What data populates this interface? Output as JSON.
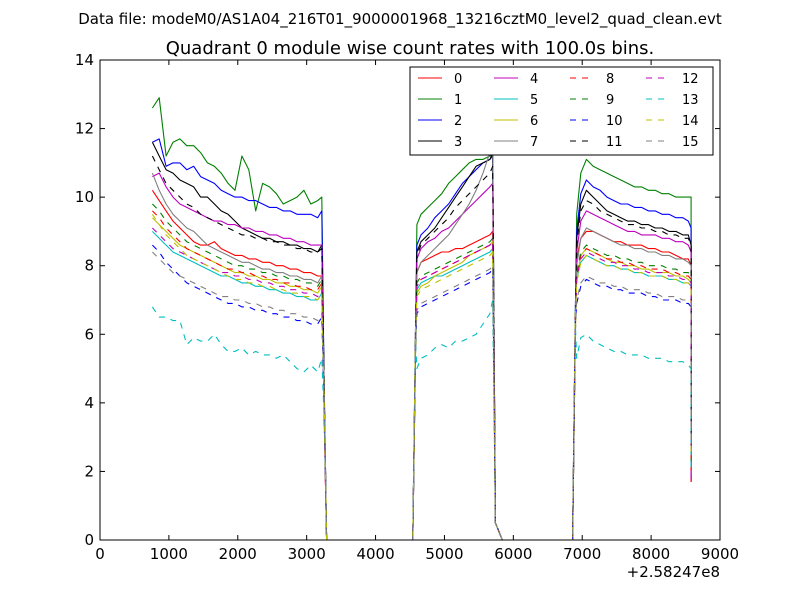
{
  "figure": {
    "suptitle": "Data file: modeM0/AS1A04_216T01_9000001968_13216cztM0_level2_quad_clean.evt"
  },
  "chart_data": {
    "type": "line",
    "title": "Quadrant 0 module wise count rates with 100.0s bins.",
    "xlabel": "",
    "ylabel": "",
    "x_offset_label": "+2.58247e8",
    "xlim": [
      0,
      9000
    ],
    "ylim": [
      0,
      14
    ],
    "xticks": [
      0,
      1000,
      2000,
      3000,
      4000,
      5000,
      6000,
      7000,
      8000,
      9000
    ],
    "xtick_labels": [
      "0",
      "1000",
      "2000",
      "3000",
      "4000",
      "5000",
      "6000",
      "7000",
      "8000",
      "9000"
    ],
    "yticks": [
      0,
      2,
      4,
      6,
      8,
      10,
      12,
      14
    ],
    "ytick_labels": [
      "0",
      "2",
      "4",
      "6",
      "8",
      "10",
      "12",
      "14"
    ],
    "grid": false,
    "legend": {
      "placement": "top-right",
      "columns": 4
    },
    "x": {
      "seg1": [
        760,
        860,
        960,
        1060,
        1160,
        1260,
        1360,
        1460,
        1560,
        1660,
        1760,
        1860,
        1960,
        2060,
        2160,
        2260,
        2360,
        2460,
        2560,
        2660,
        2760,
        2860,
        2960,
        3060,
        3160,
        3220
      ],
      "seg2": [
        4600,
        4660,
        4760,
        4860,
        4960,
        5060,
        5160,
        5260,
        5360,
        5460,
        5560,
        5660,
        5700
      ],
      "seg3": [
        6920,
        6980,
        7060,
        7160,
        7260,
        7360,
        7460,
        7560,
        7660,
        7760,
        7860,
        7960,
        8060,
        8160,
        8260,
        8360,
        8460,
        8540,
        8580
      ],
      "gap_drops": {
        "seg1_end": [
          3260,
          3290
        ],
        "seg2_start": [
          4540,
          4580
        ],
        "seg2_end": [
          5740,
          5780,
          5840
        ],
        "seg3_start": [
          6860,
          6900
        ],
        "seg3_end": [
          8580
        ]
      }
    },
    "series": [
      {
        "name": "0",
        "color": "#ff0000",
        "dash": "solid",
        "peak": 11.9,
        "base": [
          10.2,
          9.9,
          9.6,
          9.3,
          9.1,
          8.9,
          8.7,
          8.6,
          8.6,
          8.7,
          8.5,
          8.4,
          8.3,
          8.3,
          8.2,
          8.2,
          8.1,
          8.1,
          8.0,
          8.0,
          7.9,
          7.9,
          7.8,
          7.8,
          7.7,
          7.7
        ],
        "b2": [
          7.8,
          8.1,
          8.2,
          8.3,
          8.4,
          8.4,
          8.5,
          8.5,
          8.6,
          8.7,
          8.8,
          8.9,
          9.0
        ],
        "b3": [
          8.2,
          8.8,
          9.0,
          9.0,
          8.9,
          8.8,
          8.7,
          8.7,
          8.6,
          8.6,
          8.6,
          8.5,
          8.5,
          8.4,
          8.4,
          8.3,
          8.2,
          8.2,
          8.0
        ]
      },
      {
        "name": "1",
        "color": "#008000",
        "dash": "solid",
        "peak": 11.9,
        "base": [
          12.6,
          12.9,
          11.2,
          11.6,
          11.7,
          11.5,
          11.5,
          11.3,
          11.0,
          10.9,
          10.7,
          10.4,
          10.2,
          11.2,
          10.8,
          9.6,
          10.4,
          10.3,
          10.1,
          9.8,
          9.9,
          10.0,
          10.2,
          9.8,
          9.9,
          10.0
        ],
        "b2": [
          9.2,
          9.5,
          9.7,
          9.9,
          10.1,
          10.4,
          10.6,
          10.8,
          11.0,
          11.1,
          11.1,
          11.2,
          11.3
        ],
        "b3": [
          9.5,
          10.7,
          11.1,
          10.9,
          10.8,
          10.7,
          10.6,
          10.5,
          10.4,
          10.3,
          10.3,
          10.2,
          10.2,
          10.1,
          10.1,
          10.0,
          10.0,
          10.0,
          10.0
        ]
      },
      {
        "name": "2",
        "color": "#0000ff",
        "dash": "solid",
        "peak": 11.9,
        "base": [
          11.6,
          11.7,
          10.9,
          11.0,
          11.0,
          10.8,
          10.9,
          10.6,
          10.5,
          10.4,
          10.2,
          10.1,
          10.0,
          10.0,
          9.9,
          9.9,
          9.8,
          9.7,
          9.7,
          9.6,
          9.6,
          9.5,
          9.5,
          9.5,
          9.4,
          9.6
        ],
        "b2": [
          8.6,
          8.9,
          9.1,
          9.4,
          9.6,
          9.8,
          10.1,
          10.4,
          10.6,
          10.8,
          11.0,
          11.1,
          11.2
        ],
        "b3": [
          9.0,
          10.1,
          10.5,
          10.3,
          10.2,
          10.0,
          9.9,
          9.8,
          9.8,
          9.7,
          9.7,
          9.6,
          9.6,
          9.5,
          9.5,
          9.4,
          9.4,
          9.3,
          9.1
        ]
      },
      {
        "name": "3",
        "color": "#000000",
        "dash": "solid",
        "peak": 11.9,
        "base": [
          11.6,
          11.2,
          10.8,
          10.7,
          10.5,
          10.4,
          10.3,
          10.0,
          10.0,
          9.8,
          9.6,
          9.5,
          9.3,
          9.1,
          9.0,
          8.9,
          8.8,
          8.8,
          8.7,
          8.7,
          8.6,
          8.6,
          8.5,
          8.5,
          8.4,
          8.6
        ],
        "b2": [
          8.4,
          8.7,
          8.9,
          9.1,
          9.4,
          9.7,
          10.0,
          10.3,
          10.6,
          10.9,
          11.0,
          11.1,
          11.3
        ],
        "b3": [
          8.8,
          9.8,
          10.2,
          10.0,
          9.8,
          9.6,
          9.5,
          9.4,
          9.3,
          9.3,
          9.2,
          9.2,
          9.1,
          9.1,
          9.0,
          9.0,
          8.9,
          8.9,
          8.6
        ]
      },
      {
        "name": "4",
        "color": "#bf00bf",
        "dash": "solid",
        "peak": 11.9,
        "base": [
          10.6,
          10.7,
          10.3,
          10.0,
          9.8,
          9.7,
          9.6,
          9.5,
          9.4,
          9.3,
          9.3,
          9.2,
          9.2,
          9.1,
          9.1,
          9.0,
          9.0,
          8.9,
          8.9,
          8.8,
          8.8,
          8.7,
          8.7,
          8.6,
          8.6,
          8.6
        ],
        "b2": [
          8.2,
          8.5,
          8.7,
          8.8,
          9.0,
          9.1,
          9.3,
          9.5,
          9.7,
          9.9,
          10.1,
          10.3,
          10.4
        ],
        "b3": [
          8.4,
          9.3,
          9.6,
          9.5,
          9.4,
          9.3,
          9.2,
          9.1,
          9.0,
          9.0,
          8.9,
          8.9,
          8.9,
          8.8,
          8.8,
          8.7,
          8.7,
          8.6,
          8.4
        ]
      },
      {
        "name": "5",
        "color": "#00bfbf",
        "dash": "solid",
        "peak": 11.9,
        "base": [
          9.0,
          8.8,
          8.6,
          8.4,
          8.3,
          8.2,
          8.1,
          8.0,
          7.9,
          7.8,
          7.7,
          7.7,
          7.6,
          7.5,
          7.5,
          7.4,
          7.4,
          7.3,
          7.3,
          7.2,
          7.2,
          7.1,
          7.1,
          7.0,
          7.0,
          7.2
        ],
        "b2": [
          7.3,
          7.5,
          7.6,
          7.7,
          7.7,
          7.8,
          7.9,
          8.0,
          8.1,
          8.2,
          8.3,
          8.4,
          8.5
        ],
        "b3": [
          7.6,
          8.1,
          8.3,
          8.2,
          8.1,
          8.0,
          8.0,
          7.9,
          7.9,
          7.8,
          7.8,
          7.7,
          7.7,
          7.7,
          7.6,
          7.6,
          7.5,
          7.5,
          7.4
        ]
      },
      {
        "name": "6",
        "color": "#bfbf00",
        "dash": "solid",
        "peak": 11.9,
        "base": [
          9.4,
          9.2,
          9.0,
          8.8,
          8.6,
          8.5,
          8.4,
          8.3,
          8.2,
          8.1,
          8.0,
          7.9,
          7.8,
          7.8,
          7.7,
          7.7,
          7.6,
          7.6,
          7.5,
          7.5,
          7.4,
          7.4,
          7.3,
          7.3,
          7.2,
          7.4
        ],
        "b2": [
          7.2,
          7.4,
          7.5,
          7.7,
          7.8,
          7.9,
          8.0,
          8.1,
          8.3,
          8.4,
          8.5,
          8.6,
          8.7
        ],
        "b3": [
          7.6,
          8.3,
          8.5,
          8.4,
          8.3,
          8.2,
          8.1,
          8.1,
          8.0,
          8.0,
          7.9,
          7.9,
          7.8,
          7.8,
          7.8,
          7.7,
          7.7,
          7.6,
          7.5
        ]
      },
      {
        "name": "7",
        "color": "#808080",
        "dash": "solid",
        "peak": 11.9,
        "base": [
          10.7,
          10.2,
          9.8,
          9.5,
          9.3,
          9.1,
          9.0,
          8.8,
          8.6,
          8.5,
          8.4,
          8.3,
          8.2,
          8.1,
          8.1,
          8.0,
          7.9,
          7.9,
          7.8,
          7.8,
          7.7,
          7.7,
          7.6,
          7.6,
          7.5,
          7.7
        ],
        "b2": [
          7.8,
          8.1,
          8.3,
          8.5,
          8.7,
          8.9,
          9.2,
          9.5,
          9.8,
          10.2,
          10.7,
          11.3,
          11.9
        ],
        "b3": [
          8.0,
          8.8,
          9.1,
          9.0,
          8.9,
          8.8,
          8.7,
          8.6,
          8.6,
          8.5,
          8.5,
          8.4,
          8.4,
          8.3,
          8.3,
          8.2,
          8.2,
          8.1,
          8.0
        ]
      },
      {
        "name": "8",
        "color": "#ff0000",
        "dash": "dashed",
        "peak": 11.9,
        "base": [
          9.6,
          9.4,
          9.1,
          8.9,
          8.7,
          8.5,
          8.4,
          8.3,
          8.2,
          8.1,
          8.0,
          7.9,
          7.9,
          7.8,
          7.8,
          7.7,
          7.7,
          7.6,
          7.6,
          7.5,
          7.5,
          7.4,
          7.4,
          7.3,
          7.3,
          7.5
        ],
        "b2": [
          7.4,
          7.6,
          7.7,
          7.8,
          7.9,
          8.0,
          8.1,
          8.2,
          8.3,
          8.4,
          8.5,
          8.6,
          8.7
        ],
        "b3": [
          7.7,
          8.3,
          8.5,
          8.4,
          8.3,
          8.2,
          8.2,
          8.1,
          8.1,
          8.0,
          8.0,
          7.9,
          7.9,
          7.9,
          7.8,
          7.8,
          7.7,
          7.7,
          7.6
        ]
      },
      {
        "name": "9",
        "color": "#008000",
        "dash": "dashed",
        "peak": 11.9,
        "base": [
          9.8,
          9.6,
          9.3,
          9.1,
          8.9,
          8.7,
          8.6,
          8.5,
          8.4,
          8.3,
          8.2,
          8.1,
          8.0,
          8.0,
          7.9,
          7.9,
          7.8,
          7.8,
          7.7,
          7.7,
          7.6,
          7.6,
          7.5,
          7.5,
          7.4,
          7.6
        ],
        "b2": [
          7.5,
          7.7,
          7.8,
          7.9,
          8.0,
          8.1,
          8.2,
          8.3,
          8.4,
          8.5,
          8.6,
          8.7,
          8.8
        ],
        "b3": [
          7.8,
          8.4,
          8.6,
          8.5,
          8.4,
          8.3,
          8.3,
          8.2,
          8.2,
          8.1,
          8.1,
          8.0,
          8.0,
          8.0,
          7.9,
          7.9,
          7.8,
          7.8,
          7.7
        ]
      },
      {
        "name": "10",
        "color": "#0000ff",
        "dash": "dashed",
        "peak": 11.9,
        "base": [
          8.6,
          8.4,
          8.1,
          7.9,
          7.7,
          7.5,
          7.4,
          7.3,
          7.2,
          7.1,
          7.0,
          6.9,
          6.9,
          6.8,
          6.8,
          6.7,
          6.7,
          6.6,
          6.6,
          6.5,
          6.5,
          6.4,
          6.4,
          6.3,
          6.3,
          6.5
        ],
        "b2": [
          6.6,
          6.8,
          6.9,
          7.0,
          7.1,
          7.2,
          7.3,
          7.4,
          7.5,
          7.6,
          7.7,
          7.8,
          7.9
        ],
        "b3": [
          6.9,
          7.4,
          7.6,
          7.5,
          7.4,
          7.4,
          7.3,
          7.3,
          7.2,
          7.2,
          7.2,
          7.1,
          7.1,
          7.0,
          7.0,
          7.0,
          6.9,
          6.9,
          6.8
        ]
      },
      {
        "name": "11",
        "color": "#000000",
        "dash": "dashed",
        "peak": 11.9,
        "base": [
          11.2,
          10.8,
          10.4,
          10.2,
          10.0,
          9.8,
          9.7,
          9.5,
          9.4,
          9.3,
          9.2,
          9.1,
          9.0,
          8.9,
          8.9,
          8.8,
          8.8,
          8.7,
          8.7,
          8.6,
          8.6,
          8.5,
          8.5,
          8.4,
          8.4,
          8.5
        ],
        "b2": [
          8.3,
          8.6,
          8.8,
          9.0,
          9.2,
          9.4,
          9.7,
          9.9,
          10.1,
          10.3,
          10.5,
          10.7,
          10.9
        ],
        "b3": [
          8.6,
          9.6,
          9.9,
          9.8,
          9.6,
          9.5,
          9.4,
          9.3,
          9.2,
          9.2,
          9.1,
          9.1,
          9.0,
          9.0,
          8.9,
          8.9,
          8.8,
          8.8,
          8.6
        ]
      },
      {
        "name": "12",
        "color": "#bf00bf",
        "dash": "dashed",
        "peak": 11.9,
        "base": [
          9.1,
          8.9,
          8.7,
          8.5,
          8.4,
          8.3,
          8.2,
          8.1,
          8.0,
          7.9,
          7.8,
          7.8,
          7.7,
          7.7,
          7.6,
          7.6,
          7.5,
          7.5,
          7.4,
          7.4,
          7.3,
          7.3,
          7.2,
          7.2,
          7.1,
          7.3
        ],
        "b2": [
          7.4,
          7.6,
          7.7,
          7.8,
          7.9,
          8.0,
          8.1,
          8.2,
          8.3,
          8.4,
          8.5,
          8.6,
          8.7
        ],
        "b3": [
          7.6,
          8.2,
          8.4,
          8.3,
          8.2,
          8.1,
          8.1,
          8.0,
          8.0,
          7.9,
          7.9,
          7.8,
          7.8,
          7.8,
          7.7,
          7.7,
          7.6,
          7.6,
          7.5
        ]
      },
      {
        "name": "13",
        "color": "#00bfbf",
        "dash": "dashed",
        "peak": 11.9,
        "base": [
          6.8,
          6.5,
          6.5,
          6.4,
          6.4,
          5.7,
          5.9,
          5.8,
          5.8,
          6.0,
          5.7,
          5.5,
          5.5,
          5.6,
          5.4,
          5.5,
          5.4,
          5.4,
          5.3,
          5.4,
          5.2,
          5.0,
          4.9,
          5.1,
          4.9,
          5.3
        ],
        "b2": [
          5.0,
          5.3,
          5.4,
          5.6,
          5.7,
          5.6,
          5.8,
          5.8,
          5.9,
          6.0,
          6.3,
          6.6,
          7.0
        ],
        "b3": [
          5.3,
          5.9,
          6.0,
          5.8,
          5.7,
          5.6,
          5.5,
          5.5,
          5.4,
          5.4,
          5.4,
          5.3,
          5.3,
          5.3,
          5.2,
          5.2,
          5.2,
          5.1,
          5.0
        ]
      },
      {
        "name": "14",
        "color": "#bfbf00",
        "dash": "dashed",
        "peak": 11.9,
        "base": [
          9.5,
          9.2,
          8.9,
          8.7,
          8.5,
          8.3,
          8.2,
          8.1,
          8.0,
          7.9,
          7.8,
          7.7,
          7.6,
          7.6,
          7.5,
          7.5,
          7.4,
          7.4,
          7.3,
          7.3,
          7.2,
          7.2,
          7.1,
          7.1,
          7.0,
          7.2
        ],
        "b2": [
          7.1,
          7.3,
          7.4,
          7.5,
          7.6,
          7.7,
          7.8,
          7.9,
          8.0,
          8.1,
          8.2,
          8.3,
          8.4
        ],
        "b3": [
          7.5,
          8.1,
          8.3,
          8.2,
          8.1,
          8.0,
          8.0,
          7.9,
          7.9,
          7.8,
          7.8,
          7.7,
          7.7,
          7.7,
          7.6,
          7.6,
          7.5,
          7.5,
          7.4
        ]
      },
      {
        "name": "15",
        "color": "#808080",
        "dash": "dashed",
        "peak": 11.9,
        "base": [
          8.4,
          8.2,
          8.0,
          7.8,
          7.7,
          7.6,
          7.5,
          7.4,
          7.3,
          7.2,
          7.1,
          7.1,
          7.0,
          7.0,
          6.9,
          6.9,
          6.8,
          6.8,
          6.7,
          6.7,
          6.6,
          6.6,
          6.5,
          6.5,
          6.4,
          6.6
        ],
        "b2": [
          6.7,
          6.9,
          7.0,
          7.1,
          7.2,
          7.3,
          7.4,
          7.5,
          7.6,
          7.7,
          7.8,
          7.9,
          8.0
        ],
        "b3": [
          7.0,
          7.5,
          7.7,
          7.6,
          7.5,
          7.5,
          7.4,
          7.4,
          7.3,
          7.3,
          7.3,
          7.2,
          7.2,
          7.1,
          7.1,
          7.1,
          7.0,
          7.0,
          6.9
        ]
      }
    ]
  }
}
